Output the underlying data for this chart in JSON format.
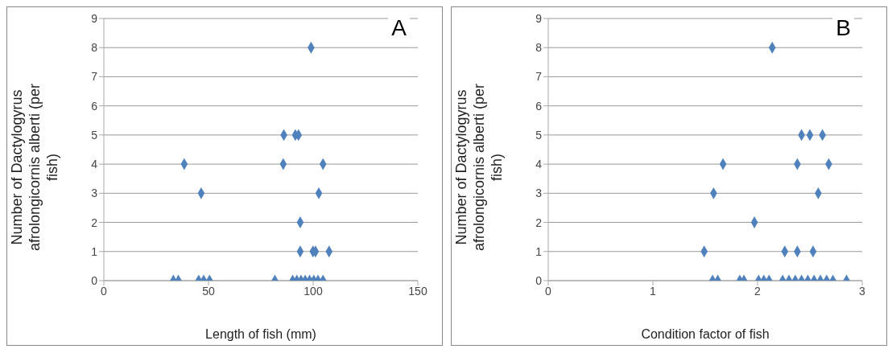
{
  "chart_data": [
    {
      "type": "scatter",
      "xlabel": "Length of fish (mm)",
      "ylabel": "Number of Dactylogyrus afrolongicornis alberti (per fish)",
      "annotations": [
        "A"
      ],
      "xlim": [
        0,
        150
      ],
      "xticks": [
        0,
        50,
        100,
        150
      ],
      "ylim": [
        0,
        9
      ],
      "yticks": [
        0,
        1,
        2,
        3,
        4,
        5,
        6,
        7,
        8,
        9
      ],
      "grid": "y",
      "marker": "diamond",
      "legend": false,
      "series": [
        {
          "color": "#4f81bd",
          "x": [
            99,
            86,
            91.5,
            93,
            38.4,
            85.7,
            104.7,
            46.5,
            102.7,
            93.8,
            93.8,
            99.9,
            101.1,
            107.6,
            33.2,
            35.6,
            45.3,
            47.7,
            50.5,
            81.7,
            90.2,
            92.2,
            94.2,
            96.2,
            98.3,
            100.3,
            102.3,
            104.7
          ],
          "values": [
            8,
            5,
            5,
            5,
            4,
            4,
            4,
            3,
            3,
            2,
            1,
            1,
            1,
            1,
            0,
            0,
            0,
            0,
            0,
            0,
            0,
            0,
            0,
            0,
            0,
            0,
            0,
            0
          ]
        }
      ]
    },
    {
      "type": "scatter",
      "xlabel": "Condition factor of fish",
      "ylabel": "Number of Dactylogyrus afrolongicornis alberti (per fish)",
      "annotations": [
        "B"
      ],
      "xlim": [
        0,
        3
      ],
      "xticks": [
        0,
        1,
        2,
        3
      ],
      "ylim": [
        0,
        9
      ],
      "yticks": [
        0,
        1,
        2,
        3,
        4,
        5,
        6,
        7,
        8,
        9
      ],
      "grid": "y",
      "marker": "diamond",
      "legend": false,
      "series": [
        {
          "color": "#4f81bd",
          "x": [
            2.14,
            2.42,
            2.5,
            2.62,
            1.67,
            2.38,
            2.68,
            1.58,
            2.58,
            1.97,
            1.49,
            2.26,
            2.38,
            2.53,
            1.57,
            1.62,
            1.83,
            1.87,
            2.01,
            2.06,
            2.11,
            2.24,
            2.3,
            2.36,
            2.42,
            2.48,
            2.54,
            2.6,
            2.66,
            2.72,
            2.85
          ],
          "values": [
            8,
            5,
            5,
            5,
            4,
            4,
            4,
            3,
            3,
            2,
            1,
            1,
            1,
            1,
            0,
            0,
            0,
            0,
            0,
            0,
            0,
            0,
            0,
            0,
            0,
            0,
            0,
            0,
            0,
            0,
            0
          ]
        }
      ]
    }
  ]
}
